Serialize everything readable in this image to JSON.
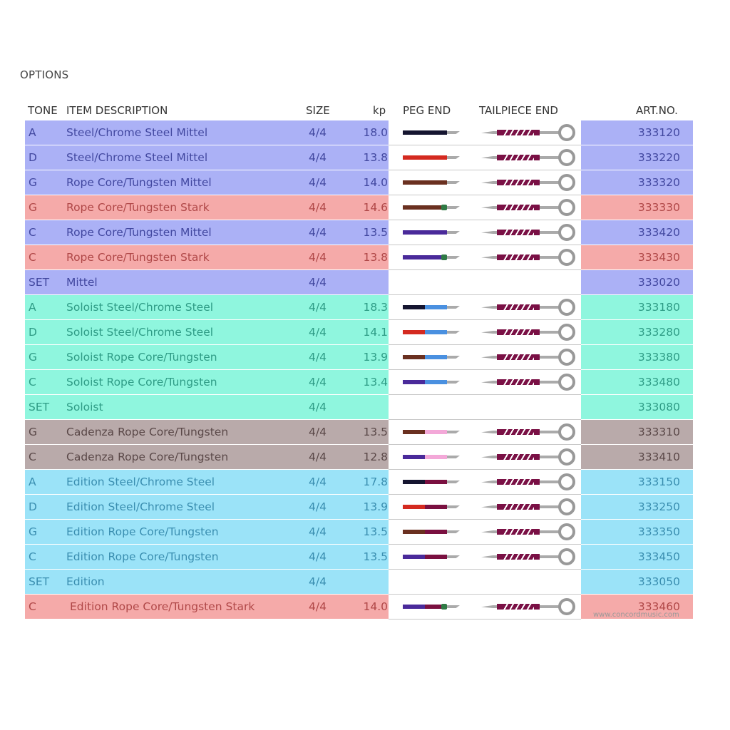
{
  "title": "OPTIONS",
  "headers": {
    "tone": "TONE",
    "desc": "ITEM DESCRIPTION",
    "size": "SIZE",
    "kp": "kp",
    "peg": "PEG END",
    "tail": "TAILPIECE END",
    "art": "ART.NO."
  },
  "groups": {
    "mittel": {
      "bg": "#abb1f6",
      "text": "#4248a0"
    },
    "stark": {
      "bg": "#f5aaa9",
      "text": "#b04848"
    },
    "soloist": {
      "bg": "#8ff6de",
      "text": "#2f9c86"
    },
    "cadenza": {
      "bg": "#b9aaaa",
      "text": "#5a4848"
    },
    "edition": {
      "bg": "#9be3f8",
      "text": "#3a8eb0"
    }
  },
  "rows": [
    {
      "tone": "A",
      "desc": "Steel/Chrome Steel Mittel",
      "size": "4/4",
      "kp": "18.0",
      "art": "333120",
      "group": "mittel",
      "peg": [
        "#151530"
      ],
      "knot": false
    },
    {
      "tone": "D",
      "desc": "Steel/Chrome Steel Mittel",
      "size": "4/4",
      "kp": "13.8",
      "art": "333220",
      "group": "mittel",
      "peg": [
        "#d42a20"
      ],
      "knot": false
    },
    {
      "tone": "G",
      "desc": "Rope Core/Tungsten Mittel",
      "size": "4/4",
      "kp": "14.0",
      "art": "333320",
      "group": "mittel",
      "peg": [
        "#6a3020"
      ],
      "knot": false
    },
    {
      "tone": "G",
      "desc": "Rope Core/Tungsten Stark",
      "size": "4/4",
      "kp": "14.6",
      "art": "333330",
      "group": "stark",
      "peg": [
        "#6a3020"
      ],
      "knot": true
    },
    {
      "tone": "C",
      "desc": "Rope Core/Tungsten Mittel",
      "size": "4/4",
      "kp": "13.5",
      "art": "333420",
      "group": "mittel",
      "peg": [
        "#4a2a9a"
      ],
      "knot": false
    },
    {
      "tone": "C",
      "desc": "Rope Core/Tungsten Stark",
      "size": "4/4",
      "kp": "13.8",
      "art": "333430",
      "group": "stark",
      "peg": [
        "#4a2a9a"
      ],
      "knot": true
    },
    {
      "tone": "SET",
      "desc": "Mittel",
      "size": "4/4",
      "kp": "",
      "art": "333020",
      "group": "mittel",
      "peg": [],
      "knot": false
    },
    {
      "tone": "A",
      "desc": "Soloist Steel/Chrome Steel",
      "size": "4/4",
      "kp": "18.3",
      "art": "333180",
      "group": "soloist",
      "peg": [
        "#151530",
        "#4a90e0"
      ],
      "knot": false
    },
    {
      "tone": "D",
      "desc": "Soloist Steel/Chrome Steel",
      "size": "4/4",
      "kp": "14.1",
      "art": "333280",
      "group": "soloist",
      "peg": [
        "#d42a20",
        "#4a90e0"
      ],
      "knot": false
    },
    {
      "tone": "G",
      "desc": "Soloist Rope Core/Tungsten",
      "size": "4/4",
      "kp": "13.9",
      "art": "333380",
      "group": "soloist",
      "peg": [
        "#6a3020",
        "#4a90e0"
      ],
      "knot": false
    },
    {
      "tone": "C",
      "desc": "Soloist Rope Core/Tungsten",
      "size": "4/4",
      "kp": "13.4",
      "art": "333480",
      "group": "soloist",
      "peg": [
        "#4a2a9a",
        "#4a90e0"
      ],
      "knot": false
    },
    {
      "tone": "SET",
      "desc": "Soloist",
      "size": "4/4",
      "kp": "",
      "art": "333080",
      "group": "soloist",
      "peg": [],
      "knot": false
    },
    {
      "tone": "G",
      "desc": "Cadenza Rope Core/Tungsten",
      "size": "4/4",
      "kp": "13.5",
      "art": "333310",
      "group": "cadenza",
      "peg": [
        "#6a3020",
        "#f3a8d8"
      ],
      "knot": false
    },
    {
      "tone": "C",
      "desc": "Cadenza Rope Core/Tungsten",
      "size": "4/4",
      "kp": "12.8",
      "art": "333410",
      "group": "cadenza",
      "peg": [
        "#4a2a9a",
        "#f3a8d8"
      ],
      "knot": false
    },
    {
      "tone": "A",
      "desc": "Edition Steel/Chrome Steel",
      "size": "4/4",
      "kp": "17.8",
      "art": "333150",
      "group": "edition",
      "peg": [
        "#151530",
        "#7a1040"
      ],
      "knot": false
    },
    {
      "tone": "D",
      "desc": "Edition Steel/Chrome Steel",
      "size": "4/4",
      "kp": "13.9",
      "art": "333250",
      "group": "edition",
      "peg": [
        "#d42a20",
        "#7a1040"
      ],
      "knot": false
    },
    {
      "tone": "G",
      "desc": "Edition Rope Core/Tungsten",
      "size": "4/4",
      "kp": "13.5",
      "art": "333350",
      "group": "edition",
      "peg": [
        "#6a3020",
        "#7a1040"
      ],
      "knot": false
    },
    {
      "tone": "C",
      "desc": "Edition Rope Core/Tungsten",
      "size": "4/4",
      "kp": "13.5",
      "art": "333450",
      "group": "edition",
      "peg": [
        "#4a2a9a",
        "#7a1040"
      ],
      "knot": false
    },
    {
      "tone": "SET",
      "desc": "Edition",
      "size": "4/4",
      "kp": "",
      "art": "333050",
      "group": "edition",
      "peg": [],
      "knot": false
    },
    {
      "tone": "C",
      "desc": "Edition Rope Core/Tungsten Stark",
      "size": "4/4",
      "kp": "14.0",
      "art": "333460",
      "group": "stark",
      "peg": [
        "#4a2a9a",
        "#7a1040"
      ],
      "knot": true
    }
  ],
  "watermark": "www.concordmusic.com"
}
